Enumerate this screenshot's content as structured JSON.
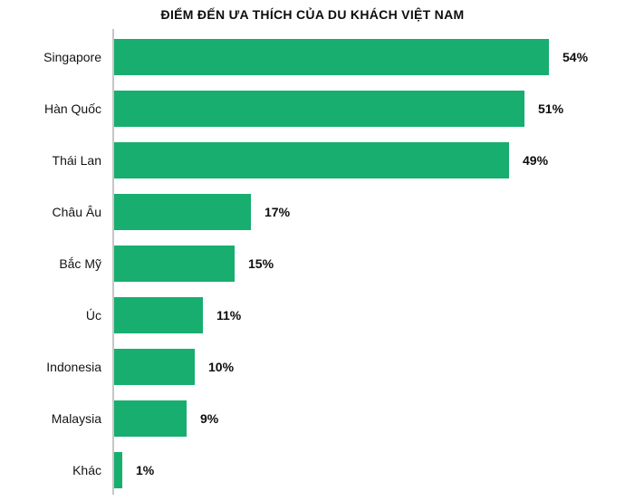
{
  "title": "ĐIỂM ĐẾN ƯA THÍCH CỦA DU KHÁCH VIỆT NAM",
  "chart_data": {
    "type": "bar",
    "orientation": "horizontal",
    "title": "ĐIỂM ĐẾN ƯA THÍCH CỦA DU KHÁCH VIỆT NAM",
    "categories": [
      "Singapore",
      "Hàn Quốc",
      "Thái Lan",
      "Châu Âu",
      "Bắc Mỹ",
      "Úc",
      "Indonesia",
      "Malaysia",
      "Khác"
    ],
    "values": [
      54,
      51,
      49,
      17,
      15,
      11,
      10,
      9,
      1
    ],
    "value_labels": [
      "54%",
      "51%",
      "49%",
      "17%",
      "15%",
      "11%",
      "10%",
      "9%",
      "1%"
    ],
    "xlabel": "",
    "ylabel": "",
    "xlim": [
      0,
      54
    ],
    "grid": false,
    "legend": false,
    "bar_color": "#17ae6f",
    "axis_color": "#c6c6c6",
    "label_color": "#141414",
    "value_label_color": "#0d0d0d"
  }
}
